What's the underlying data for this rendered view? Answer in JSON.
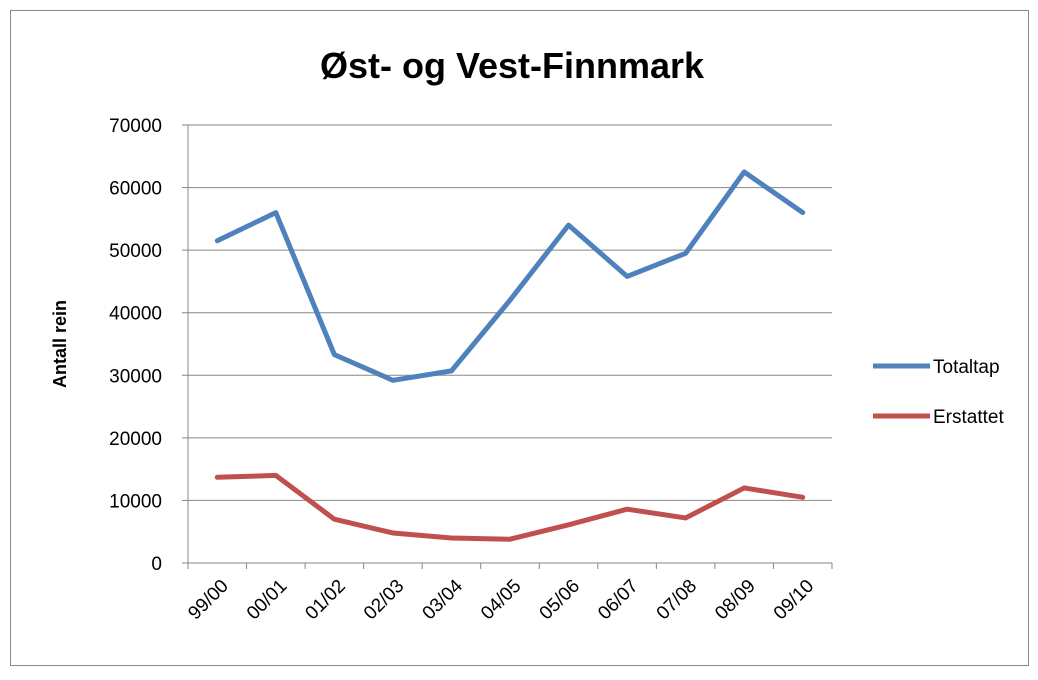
{
  "chart_data": {
    "type": "line",
    "title": "Øst- og Vest-Finnmark",
    "y_label": "Antall rein",
    "categories": [
      "99/00",
      "00/01",
      "01/02",
      "02/03",
      "03/04",
      "04/05",
      "05/06",
      "06/07",
      "07/08",
      "08/09",
      "09/10"
    ],
    "series": [
      {
        "name": "Totaltap",
        "color": "#4f81bd",
        "values": [
          51500,
          56000,
          33300,
          29200,
          30700,
          42000,
          54000,
          45800,
          49500,
          62500,
          56000
        ]
      },
      {
        "name": "Erstattet",
        "color": "#c0504d",
        "values": [
          13700,
          14000,
          7000,
          4800,
          4000,
          3800,
          6100,
          8600,
          7200,
          12000,
          10500
        ]
      }
    ],
    "ylim": [
      0,
      70000
    ],
    "yticks": [
      0,
      10000,
      20000,
      30000,
      40000,
      50000,
      60000,
      70000
    ],
    "grid": true,
    "legend": "right"
  }
}
